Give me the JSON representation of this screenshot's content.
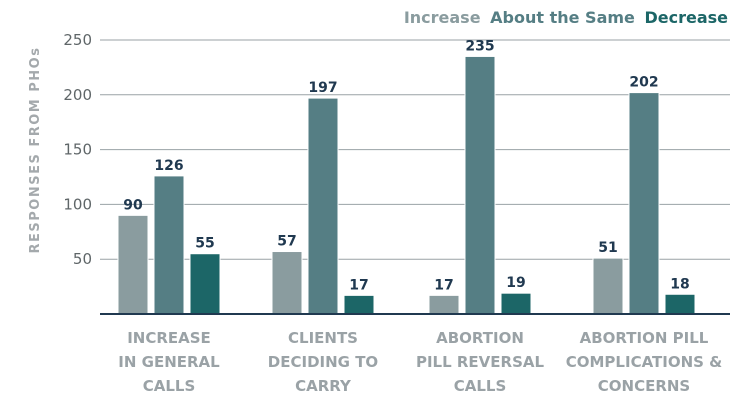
{
  "chart_data": {
    "type": "bar",
    "title": "",
    "ylabel": "RESPONSES FROM PHOs",
    "xlabel": "",
    "ylim": [
      0,
      250
    ],
    "yticks": [
      50,
      100,
      150,
      200,
      250
    ],
    "grid": true,
    "legend_position": "top-right",
    "categories": [
      [
        "INCREASE",
        "IN GENERAL",
        "CALLS"
      ],
      [
        "CLIENTS",
        "DECIDING TO",
        "CARRY"
      ],
      [
        "ABORTION",
        "PILL REVERSAL",
        "CALLS"
      ],
      [
        "ABORTION PILL",
        "COMPLICATIONS &",
        "CONCERNS"
      ]
    ],
    "series": [
      {
        "name": "Increase",
        "color": "#8a9c9f",
        "values": [
          90,
          57,
          17,
          51
        ]
      },
      {
        "name": "About the Same",
        "color": "#557e84",
        "values": [
          126,
          197,
          235,
          202
        ]
      },
      {
        "name": "Decrease",
        "color": "#1c6667",
        "values": [
          55,
          17,
          19,
          18
        ]
      }
    ]
  }
}
